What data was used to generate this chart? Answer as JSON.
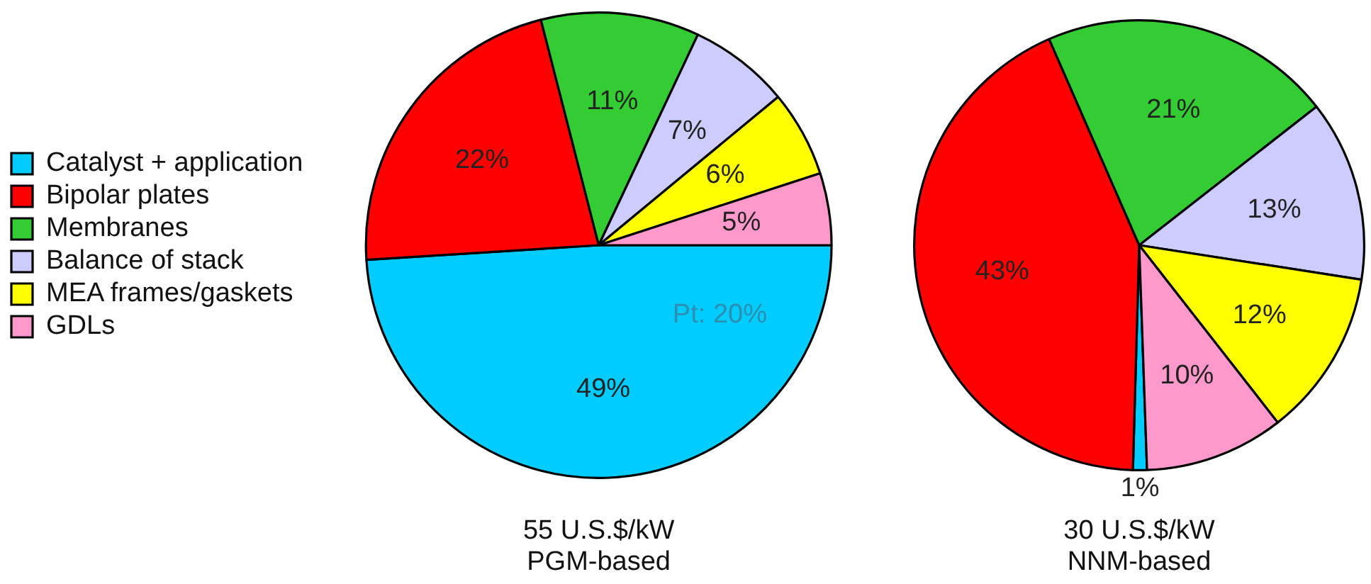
{
  "chart_data": [
    {
      "type": "pie",
      "title": "55 U.S.$/kW",
      "subtitle": "PGM-based",
      "categories": [
        "Catalyst + application",
        "Bipolar plates",
        "Membranes",
        "Balance of stack",
        "MEA frames/gaskets",
        "GDLs"
      ],
      "values": [
        49,
        22,
        11,
        7,
        6,
        5
      ],
      "value_labels": [
        "49%",
        "22%",
        "11%",
        "7%",
        "6%",
        "5%"
      ],
      "colors": [
        "#00ccff",
        "#ff0000",
        "#33cc33",
        "#ccccff",
        "#ffff00",
        "#ff99cc"
      ],
      "legend": "left",
      "annotations": [
        "Pt: 20%"
      ]
    },
    {
      "type": "pie",
      "title": "30 U.S.$/kW",
      "subtitle": "NNM-based",
      "categories": [
        null,
        null,
        null,
        null,
        null,
        null
      ],
      "values": [
        1,
        43,
        21,
        13,
        12,
        10
      ],
      "value_labels": [
        "1%",
        "43%",
        "21%",
        "13%",
        "12%",
        "10%"
      ],
      "colors": [
        "#00ccff",
        "#ff0000",
        "#33cc33",
        "#ccccff",
        "#ffff00",
        "#ff99cc"
      ]
    }
  ]
}
